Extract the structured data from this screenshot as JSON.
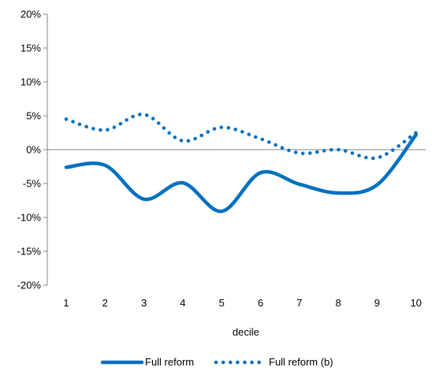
{
  "chart_data": {
    "type": "line",
    "x": [
      1,
      2,
      3,
      4,
      5,
      6,
      7,
      8,
      9,
      10
    ],
    "xlabel": "decile",
    "ylabel": "",
    "ylim": [
      -20,
      20
    ],
    "y_ticks": [
      -20,
      -15,
      -10,
      -5,
      0,
      5,
      10,
      15,
      20
    ],
    "y_tick_labels": [
      "-20%",
      "-15%",
      "-10%",
      "-5%",
      "0%",
      "5%",
      "10%",
      "15%",
      "20%"
    ],
    "x_tick_labels": [
      "1",
      "2",
      "3",
      "4",
      "5",
      "6",
      "7",
      "8",
      "9",
      "10"
    ],
    "grid": false,
    "legend_position": "bottom",
    "series": [
      {
        "name": "Full reform",
        "style": "solid",
        "color": "#0070c0",
        "values": [
          -2.6,
          -2.3,
          -7.3,
          -4.9,
          -9.1,
          -3.4,
          -5.1,
          -6.4,
          -5.2,
          2.2
        ]
      },
      {
        "name": "Full reform (b)",
        "style": "dotted",
        "color": "#0070c0",
        "values": [
          4.5,
          2.9,
          5.2,
          1.3,
          3.3,
          1.6,
          -0.5,
          0.0,
          -1.2,
          2.5
        ]
      }
    ]
  }
}
